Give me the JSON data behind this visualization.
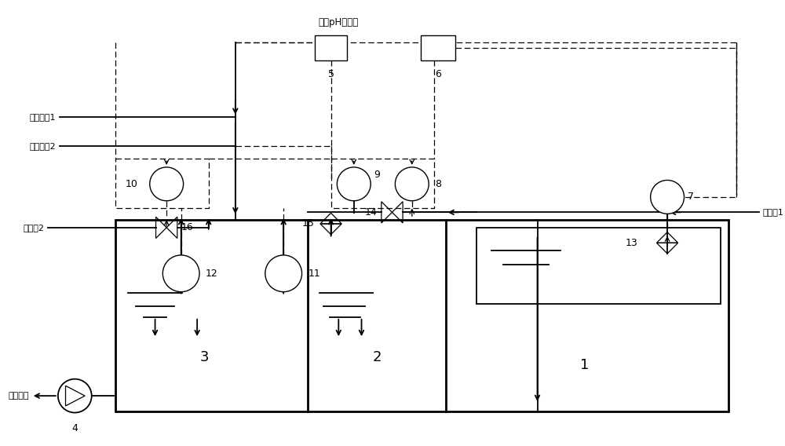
{
  "bg_color": "#ffffff",
  "labels": {
    "wastewater_flow1": "废水流股1",
    "wastewater_flow2": "废水流股2",
    "wastewater_label": "废水pH、流量",
    "neutralizer1": "中和剂1",
    "neutralizer2": "中和剂2",
    "downstream": "下游装置",
    "tank1": "1",
    "tank2": "2",
    "tank3": "3",
    "pump_num": "4",
    "n5": "5",
    "n6": "6",
    "n7": "7",
    "n8": "8",
    "n9": "9",
    "n10": "10",
    "n11": "11",
    "n12": "12",
    "n13": "13",
    "n14": "14",
    "n15": "15",
    "n16": "16"
  }
}
